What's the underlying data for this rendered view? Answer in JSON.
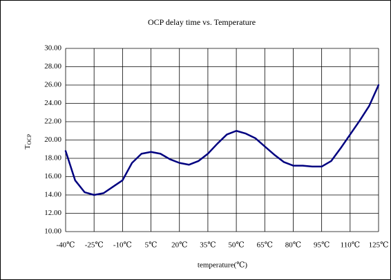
{
  "chart_data": {
    "type": "line",
    "title": "OCP delay time vs. Temperature",
    "xlabel": "temperature(℃)",
    "ylabel": "T",
    "ylabel_sub": "OCP",
    "x": [
      -40,
      -35,
      -30,
      -25,
      -20,
      -15,
      -10,
      -5,
      0,
      5,
      10,
      15,
      20,
      25,
      30,
      35,
      40,
      45,
      50,
      55,
      60,
      65,
      70,
      75,
      80,
      85,
      90,
      95,
      100,
      105,
      110,
      115,
      120,
      125
    ],
    "series": [
      {
        "name": "TOCP",
        "color": "#000080",
        "values": [
          18.8,
          15.6,
          14.3,
          14.0,
          14.2,
          14.9,
          15.6,
          17.5,
          18.5,
          18.7,
          18.5,
          17.9,
          17.5,
          17.3,
          17.7,
          18.5,
          19.6,
          20.6,
          21.0,
          20.7,
          20.2,
          19.3,
          18.4,
          17.6,
          17.2,
          17.2,
          17.1,
          17.1,
          17.7,
          19.1,
          20.6,
          22.1,
          23.7,
          26.0
        ]
      }
    ],
    "xlim": [
      -40,
      125
    ],
    "xticks": [
      {
        "value": -40,
        "label": "-40℃"
      },
      {
        "value": -25,
        "label": "-25℃"
      },
      {
        "value": -10,
        "label": "-10℃"
      },
      {
        "value": 5,
        "label": "5℃"
      },
      {
        "value": 20,
        "label": "20℃"
      },
      {
        "value": 35,
        "label": "35℃"
      },
      {
        "value": 50,
        "label": "50℃"
      },
      {
        "value": 65,
        "label": "65℃"
      },
      {
        "value": 80,
        "label": "80℃"
      },
      {
        "value": 95,
        "label": "95℃"
      },
      {
        "value": 110,
        "label": "110℃"
      },
      {
        "value": 125,
        "label": "125℃"
      }
    ],
    "ylim": [
      10,
      30
    ],
    "yticks": [
      {
        "value": 10,
        "label": "10.00"
      },
      {
        "value": 12,
        "label": "12.00"
      },
      {
        "value": 14,
        "label": "14.00"
      },
      {
        "value": 16,
        "label": "16.00"
      },
      {
        "value": 18,
        "label": "18.00"
      },
      {
        "value": 20,
        "label": "20.00"
      },
      {
        "value": 22,
        "label": "22.00"
      },
      {
        "value": 24,
        "label": "24.00"
      },
      {
        "value": 26,
        "label": "26.00"
      },
      {
        "value": 28,
        "label": "28.00"
      },
      {
        "value": 30,
        "label": "30.00"
      }
    ],
    "grid": true
  }
}
